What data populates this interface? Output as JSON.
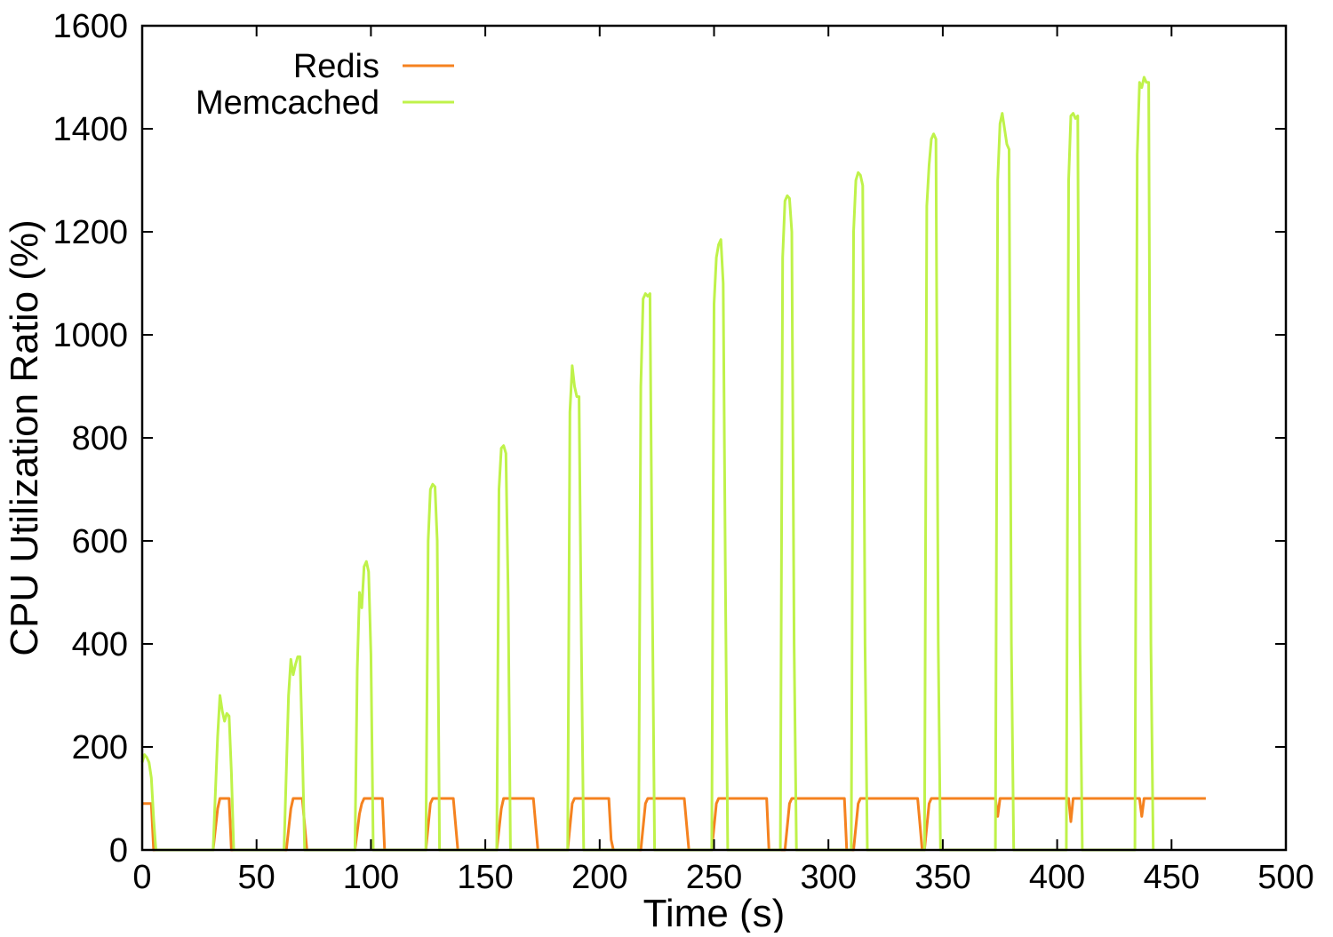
{
  "chart_data": {
    "type": "line",
    "title": "",
    "xlabel": "Time (s)",
    "ylabel": "CPU Utilization Ratio (%)",
    "xlim": [
      0,
      500
    ],
    "ylim": [
      0,
      1600
    ],
    "xticks": [
      0,
      50,
      100,
      150,
      200,
      250,
      300,
      350,
      400,
      450,
      500
    ],
    "yticks": [
      0,
      200,
      400,
      600,
      800,
      1000,
      1200,
      1400,
      1600
    ],
    "grid": false,
    "legend_position": "top-left",
    "series": [
      {
        "name": "Redis",
        "color": "#f5821f",
        "points": [
          [
            0,
            90
          ],
          [
            4,
            90
          ],
          [
            5,
            0
          ],
          [
            31,
            0
          ],
          [
            33,
            80
          ],
          [
            34,
            100
          ],
          [
            38,
            100
          ],
          [
            39,
            0
          ],
          [
            63,
            0
          ],
          [
            65,
            80
          ],
          [
            66,
            100
          ],
          [
            70,
            100
          ],
          [
            72,
            0
          ],
          [
            93,
            0
          ],
          [
            95,
            70
          ],
          [
            96,
            90
          ],
          [
            97,
            100
          ],
          [
            105,
            100
          ],
          [
            106,
            0
          ],
          [
            124,
            0
          ],
          [
            126,
            90
          ],
          [
            127,
            100
          ],
          [
            136,
            100
          ],
          [
            138,
            0
          ],
          [
            155,
            0
          ],
          [
            157,
            80
          ],
          [
            158,
            100
          ],
          [
            171,
            100
          ],
          [
            173,
            0
          ],
          [
            186,
            0
          ],
          [
            188,
            90
          ],
          [
            189,
            100
          ],
          [
            204,
            100
          ],
          [
            205,
            20
          ],
          [
            206,
            0
          ],
          [
            218,
            0
          ],
          [
            220,
            90
          ],
          [
            221,
            100
          ],
          [
            237,
            100
          ],
          [
            239,
            0
          ],
          [
            249,
            0
          ],
          [
            251,
            90
          ],
          [
            252,
            100
          ],
          [
            273,
            100
          ],
          [
            274,
            0
          ],
          [
            281,
            0
          ],
          [
            283,
            90
          ],
          [
            284,
            100
          ],
          [
            307,
            100
          ],
          [
            308,
            0
          ],
          [
            311,
            0
          ],
          [
            313,
            90
          ],
          [
            314,
            100
          ],
          [
            339,
            100
          ],
          [
            340,
            50
          ],
          [
            341,
            0
          ],
          [
            342,
            0
          ],
          [
            344,
            90
          ],
          [
            345,
            100
          ],
          [
            373,
            100
          ],
          [
            374,
            65
          ],
          [
            375,
            100
          ],
          [
            405,
            100
          ],
          [
            406,
            55
          ],
          [
            407,
            100
          ],
          [
            436,
            100
          ],
          [
            437,
            65
          ],
          [
            438,
            100
          ],
          [
            465,
            100
          ]
        ]
      },
      {
        "name": "Memcached",
        "color": "#bff24a",
        "points": [
          [
            0,
            170
          ],
          [
            1,
            185
          ],
          [
            2,
            180
          ],
          [
            3,
            170
          ],
          [
            4,
            140
          ],
          [
            5,
            60
          ],
          [
            6,
            0
          ],
          [
            31,
            0
          ],
          [
            33,
            220
          ],
          [
            34,
            300
          ],
          [
            35,
            270
          ],
          [
            36,
            250
          ],
          [
            37,
            265
          ],
          [
            38,
            260
          ],
          [
            39,
            150
          ],
          [
            40,
            0
          ],
          [
            62,
            0
          ],
          [
            64,
            300
          ],
          [
            65,
            370
          ],
          [
            66,
            340
          ],
          [
            67,
            360
          ],
          [
            68,
            375
          ],
          [
            69,
            375
          ],
          [
            70,
            200
          ],
          [
            71,
            0
          ],
          [
            93,
            0
          ],
          [
            94,
            350
          ],
          [
            95,
            500
          ],
          [
            96,
            470
          ],
          [
            97,
            550
          ],
          [
            98,
            560
          ],
          [
            99,
            540
          ],
          [
            100,
            380
          ],
          [
            101,
            0
          ],
          [
            124,
            0
          ],
          [
            125,
            600
          ],
          [
            126,
            700
          ],
          [
            127,
            710
          ],
          [
            128,
            705
          ],
          [
            129,
            600
          ],
          [
            130,
            0
          ],
          [
            155,
            0
          ],
          [
            156,
            700
          ],
          [
            157,
            780
          ],
          [
            158,
            785
          ],
          [
            159,
            770
          ],
          [
            160,
            500
          ],
          [
            161,
            0
          ],
          [
            186,
            0
          ],
          [
            187,
            850
          ],
          [
            188,
            940
          ],
          [
            189,
            900
          ],
          [
            190,
            880
          ],
          [
            191,
            880
          ],
          [
            192,
            400
          ],
          [
            193,
            0
          ],
          [
            217,
            0
          ],
          [
            218,
            900
          ],
          [
            219,
            1070
          ],
          [
            220,
            1080
          ],
          [
            221,
            1075
          ],
          [
            222,
            1080
          ],
          [
            223,
            500
          ],
          [
            224,
            0
          ],
          [
            249,
            0
          ],
          [
            250,
            1060
          ],
          [
            251,
            1150
          ],
          [
            252,
            1175
          ],
          [
            253,
            1185
          ],
          [
            254,
            1100
          ],
          [
            255,
            500
          ],
          [
            256,
            0
          ],
          [
            279,
            0
          ],
          [
            280,
            1150
          ],
          [
            281,
            1260
          ],
          [
            282,
            1270
          ],
          [
            283,
            1265
          ],
          [
            284,
            1200
          ],
          [
            285,
            400
          ],
          [
            286,
            0
          ],
          [
            310,
            0
          ],
          [
            311,
            1200
          ],
          [
            312,
            1300
          ],
          [
            313,
            1315
          ],
          [
            314,
            1310
          ],
          [
            315,
            1290
          ],
          [
            316,
            400
          ],
          [
            317,
            0
          ],
          [
            342,
            0
          ],
          [
            343,
            1250
          ],
          [
            344,
            1330
          ],
          [
            345,
            1380
          ],
          [
            346,
            1390
          ],
          [
            347,
            1380
          ],
          [
            348,
            400
          ],
          [
            349,
            0
          ],
          [
            373,
            0
          ],
          [
            374,
            1300
          ],
          [
            375,
            1410
          ],
          [
            376,
            1430
          ],
          [
            377,
            1400
          ],
          [
            378,
            1370
          ],
          [
            379,
            1360
          ],
          [
            380,
            400
          ],
          [
            381,
            0
          ],
          [
            404,
            0
          ],
          [
            405,
            1300
          ],
          [
            406,
            1425
          ],
          [
            407,
            1430
          ],
          [
            408,
            1420
          ],
          [
            409,
            1425
          ],
          [
            410,
            400
          ],
          [
            411,
            0
          ],
          [
            434,
            0
          ],
          [
            435,
            1350
          ],
          [
            436,
            1490
          ],
          [
            437,
            1480
          ],
          [
            438,
            1500
          ],
          [
            439,
            1490
          ],
          [
            440,
            1490
          ],
          [
            441,
            400
          ],
          [
            442,
            0
          ]
        ]
      }
    ]
  }
}
